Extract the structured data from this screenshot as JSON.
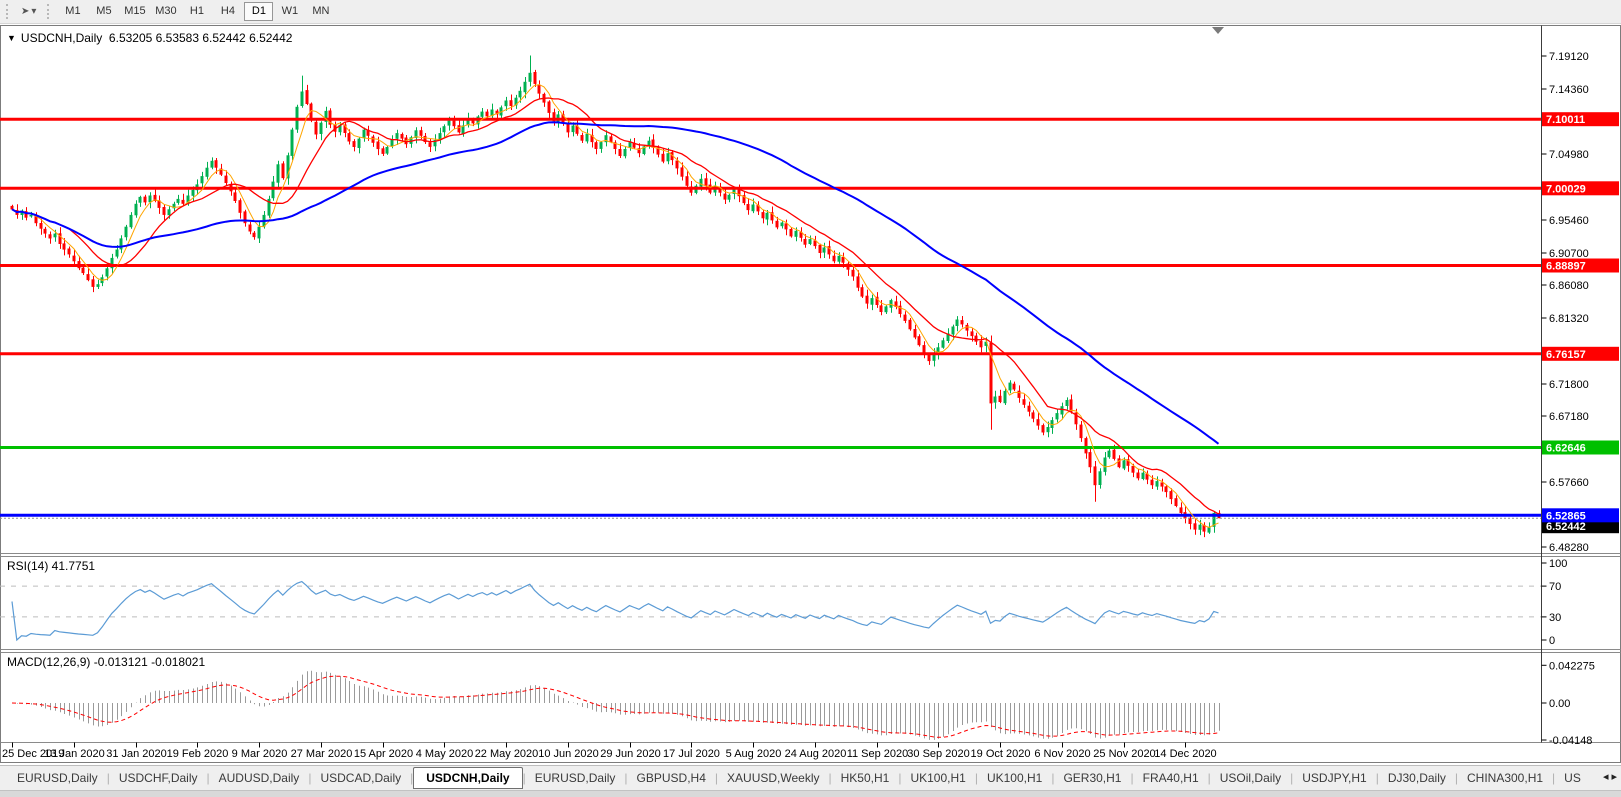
{
  "toolbar": {
    "cursor_icon": "➤",
    "caret_icon": "▾",
    "timeframes": [
      "M1",
      "M5",
      "M15",
      "M30",
      "H1",
      "H4",
      "D1",
      "W1",
      "MN"
    ],
    "active_timeframe": "D1"
  },
  "chart": {
    "collapse_icon": "▼",
    "symbol": "USDCNH",
    "period": "Daily",
    "title_line": "USDCNH,Daily  6.53205 6.53583 6.52442 6.52442"
  },
  "panes": {
    "rsi_label": "RSI(14) 41.7751",
    "macd_label": "MACD(12,26,9) -0.013121 -0.018021"
  },
  "tabs": {
    "items": [
      "EURUSD,Daily",
      "USDCHF,Daily",
      "AUDUSD,Daily",
      "USDCAD,Daily",
      "USDCNH,Daily",
      "EURUSD,Daily",
      "GBPUSD,H4",
      "XAUUSD,Weekly",
      "HK50,H1",
      "UK100,H1",
      "UK100,H1",
      "GER30,H1",
      "FRA40,H1",
      "USOil,Daily",
      "USDJPY,H1",
      "DJ30,Daily",
      "CHINA300,H1",
      "US"
    ],
    "active_index": 4,
    "scroll_left_icon": "◂",
    "scroll_right_icon": "▸"
  },
  "chart_data": {
    "type": "candlestick",
    "symbol": "USDCNH",
    "timeframe": "Daily",
    "last_bar": {
      "open": 6.53205,
      "high": 6.53583,
      "low": 6.52442,
      "close": 6.52442
    },
    "current_price": 6.52442,
    "price_axis_ticks": [
      7.1912,
      7.1436,
      7.0498,
      6.9546,
      6.907,
      6.8608,
      6.8132,
      6.718,
      6.6718,
      6.5766,
      6.4828
    ],
    "levels": [
      {
        "price": 7.10011,
        "color": "#ff0000",
        "width": 3
      },
      {
        "price": 7.00029,
        "color": "#ff0000",
        "width": 3
      },
      {
        "price": 6.88897,
        "color": "#ff0000",
        "width": 3
      },
      {
        "price": 6.76157,
        "color": "#ff0000",
        "width": 3
      },
      {
        "price": 6.62646,
        "color": "#00c000",
        "width": 3
      },
      {
        "price": 6.52865,
        "color": "#0000ff",
        "width": 3
      }
    ],
    "colors": {
      "up": "#00b050",
      "down": "#ff0000",
      "ma_fast": "#ffa500",
      "ma_mid": "#ff0000",
      "ma_slow": "#0000ff",
      "rsi": "#5b9bd5",
      "rsi_guide": "#bcbcbc",
      "macd_hist": "#9a9a9a",
      "macd_signal": "#ff0000",
      "axis_text": "#000000",
      "level_text": "#ffffff",
      "current_bg": "#000000"
    },
    "moving_average_periods": {
      "fast": 5,
      "mid": 13,
      "slow": 55
    },
    "closes": [
      6.97,
      6.962,
      6.968,
      6.958,
      6.962,
      6.95,
      6.942,
      6.935,
      6.928,
      6.935,
      6.92,
      6.912,
      6.905,
      6.895,
      6.885,
      6.878,
      6.868,
      6.858,
      6.862,
      6.872,
      6.885,
      6.9,
      6.912,
      6.928,
      6.945,
      6.962,
      6.978,
      6.988,
      6.98,
      6.99,
      6.982,
      6.972,
      6.962,
      6.97,
      6.978,
      6.985,
      6.978,
      6.99,
      6.998,
      7.006,
      7.018,
      7.03,
      7.04,
      7.03,
      7.02,
      7.008,
      6.996,
      6.982,
      6.965,
      6.95,
      6.938,
      6.93,
      6.945,
      6.962,
      6.985,
      7.01,
      7.035,
      7.015,
      7.048,
      7.085,
      7.118,
      7.14,
      7.122,
      7.098,
      7.078,
      7.095,
      7.112,
      7.092,
      7.082,
      7.092,
      7.08,
      7.068,
      7.06,
      7.072,
      7.085,
      7.076,
      7.066,
      7.057,
      7.05,
      7.06,
      7.07,
      7.08,
      7.072,
      7.064,
      7.074,
      7.084,
      7.076,
      7.067,
      7.06,
      7.07,
      7.08,
      7.09,
      7.098,
      7.09,
      7.081,
      7.091,
      7.101,
      7.094,
      7.104,
      7.111,
      7.104,
      7.114,
      7.107,
      7.117,
      7.127,
      7.119,
      7.131,
      7.141,
      7.154,
      7.167,
      7.151,
      7.137,
      7.124,
      7.109,
      7.097,
      7.107,
      7.094,
      7.081,
      7.091,
      7.079,
      7.069,
      7.079,
      7.067,
      7.057,
      7.067,
      7.077,
      7.067,
      7.057,
      7.047,
      7.057,
      7.067,
      7.059,
      7.051,
      7.061,
      7.069,
      7.059,
      7.049,
      7.039,
      7.051,
      7.041,
      7.029,
      7.017,
      7.004,
      6.994,
      7.004,
      7.014,
      7.004,
      6.994,
      7.004,
      6.994,
      6.984,
      6.991,
      6.999,
      6.989,
      6.979,
      6.969,
      6.977,
      6.967,
      6.957,
      6.965,
      6.954,
      6.944,
      6.951,
      6.941,
      6.931,
      6.939,
      6.929,
      6.919,
      6.927,
      6.917,
      6.907,
      6.915,
      6.905,
      6.895,
      6.903,
      6.893,
      6.883,
      6.873,
      6.857,
      6.844,
      6.834,
      6.842,
      6.832,
      6.822,
      6.83,
      6.839,
      6.829,
      6.819,
      6.809,
      6.797,
      6.785,
      6.774,
      6.761,
      6.751,
      6.761,
      6.771,
      6.781,
      6.791,
      6.801,
      6.811,
      6.804,
      6.795,
      6.787,
      6.779,
      6.771,
      6.779,
      6.69,
      6.7,
      6.692,
      6.708,
      6.72,
      6.71,
      6.698,
      6.688,
      6.678,
      6.668,
      6.658,
      6.648,
      6.656,
      6.666,
      6.676,
      6.686,
      6.695,
      6.678,
      6.66,
      6.64,
      6.618,
      6.598,
      6.572,
      6.592,
      6.612,
      6.622,
      6.61,
      6.598,
      6.608,
      6.6,
      6.59,
      6.582,
      6.59,
      6.58,
      6.572,
      6.578,
      6.57,
      6.562,
      6.552,
      6.542,
      6.532,
      6.524,
      6.516,
      6.508,
      6.515,
      6.505,
      6.512,
      6.532,
      6.52442
    ],
    "wick_overrides": {
      "61": {
        "h": 7.163
      },
      "109": {
        "h": 7.192
      },
      "206": {
        "h": 6.788,
        "l": 6.652
      },
      "228": {
        "l": 6.548
      },
      "254": {
        "o": 6.53205,
        "h": 6.53583,
        "l": 6.52442
      }
    },
    "date_ticks": [
      {
        "label": "25 Dec 2019",
        "bar": 0
      },
      {
        "label": "13 Jan 2020",
        "bar": 13
      },
      {
        "label": "31 Jan 2020",
        "bar": 26
      },
      {
        "label": "19 Feb 2020",
        "bar": 39
      },
      {
        "label": "9 Mar 2020",
        "bar": 52
      },
      {
        "label": "27 Mar 2020",
        "bar": 65
      },
      {
        "label": "15 Apr 2020",
        "bar": 78
      },
      {
        "label": "4 May 2020",
        "bar": 91
      },
      {
        "label": "22 May 2020",
        "bar": 104
      },
      {
        "label": "10 Jun 2020",
        "bar": 117
      },
      {
        "label": "29 Jun 2020",
        "bar": 130
      },
      {
        "label": "17 Jul 2020",
        "bar": 143
      },
      {
        "label": "5 Aug 2020",
        "bar": 156
      },
      {
        "label": "24 Aug 2020",
        "bar": 169
      },
      {
        "label": "11 Sep 2020",
        "bar": 182
      },
      {
        "label": "30 Sep 2020",
        "bar": 195
      },
      {
        "label": "19 Oct 2020",
        "bar": 208
      },
      {
        "label": "6 Nov 2020",
        "bar": 221
      },
      {
        "label": "25 Nov 2020",
        "bar": 234
      },
      {
        "label": "14 Dec 2020",
        "bar": 247
      }
    ],
    "rsi": {
      "period": 14,
      "last_value": 41.7751,
      "guide_levels": [
        70,
        30
      ],
      "axis_labels": [
        {
          "label": "100",
          "value": 100
        },
        {
          "label": "70",
          "value": 70
        },
        {
          "label": "30",
          "value": 30
        },
        {
          "label": "0",
          "value": 0
        }
      ]
    },
    "macd": {
      "fast": 12,
      "slow": 26,
      "signal": 9,
      "last_values": [
        -0.013121,
        -0.018021
      ],
      "axis_labels": [
        {
          "label": "0.042275",
          "value": 0.042275
        },
        {
          "label": "0.00",
          "value": 0
        },
        {
          "label": "-0.04148",
          "value": -0.04148
        }
      ]
    }
  }
}
